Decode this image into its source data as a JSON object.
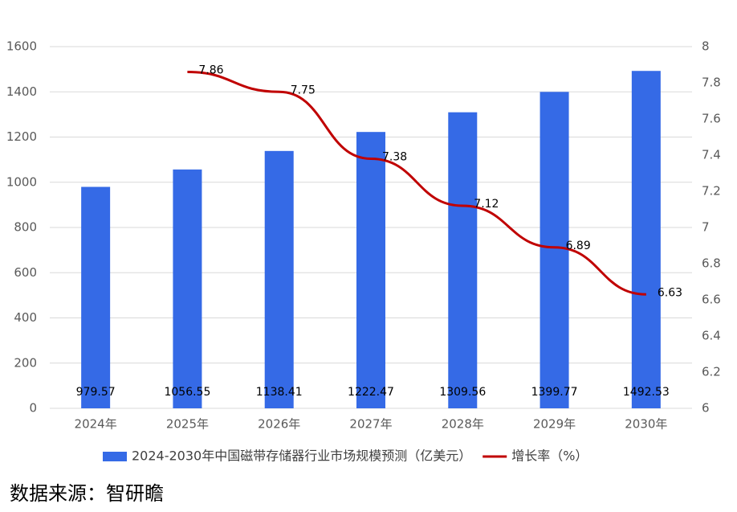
{
  "chart_data": {
    "type": "bar-line",
    "categories": [
      "2024年",
      "2025年",
      "2026年",
      "2027年",
      "2028年",
      "2029年",
      "2030年"
    ],
    "series": [
      {
        "name": "2024-2030年中国磁带存储器行业市场规模预测（亿美元）",
        "color": "#356ae6",
        "type": "bar",
        "axis": "y",
        "values": [
          979.57,
          1056.55,
          1138.41,
          1222.47,
          1309.56,
          1399.77,
          1492.53
        ]
      },
      {
        "name": "增长率（%）",
        "color": "#c00000",
        "type": "line",
        "axis": "y2",
        "values": [
          null,
          7.86,
          7.75,
          7.38,
          7.12,
          6.89,
          6.63
        ]
      }
    ],
    "ylim": [
      0,
      1600
    ],
    "yticks": [
      0,
      200,
      400,
      600,
      800,
      1000,
      1200,
      1400,
      1600
    ],
    "y2lim": [
      6,
      8
    ],
    "y2ticks": [
      6,
      6.2,
      6.4,
      6.6,
      6.8,
      7,
      7.2,
      7.4,
      7.6,
      7.8,
      8
    ],
    "grid": true,
    "legend": "bottom",
    "source": "数据来源：智研瞻"
  }
}
